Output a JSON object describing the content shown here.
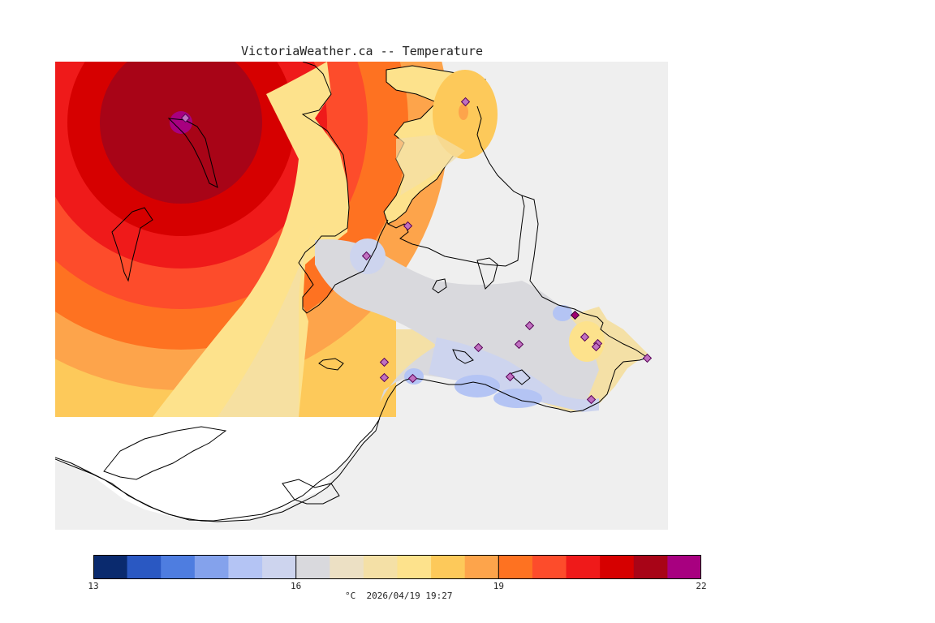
{
  "title": "VictoriaWeather.ca -- Temperature",
  "map": {
    "variable": "Temperature",
    "units": "°C",
    "timestamp": "2026/04/19 19:27",
    "colors": {
      "water": "#efefef",
      "land_nodata": "#ffffff",
      "coastline": "#000000",
      "station_fill": "#c070c0",
      "station_outline": "#550055"
    }
  },
  "legend": {
    "min": 13,
    "max": 22,
    "tick_labels": [
      "13",
      "16",
      "19",
      "22"
    ],
    "caption": "°C  2026/04/19 19:27",
    "palette": [
      "#0a2a6e",
      "#2a58c2",
      "#4e7de0",
      "#84a2ec",
      "#b4c4f4",
      "#cdd4ee",
      "#d9d9dd",
      "#ece0c4",
      "#f4e0a6",
      "#fde28c",
      "#fdc95a",
      "#fda44b",
      "#fe7221",
      "#fd4c2b",
      "#ef1a1a",
      "#d60000",
      "#a80417",
      "#a80080"
    ]
  },
  "stations_count": 17
}
